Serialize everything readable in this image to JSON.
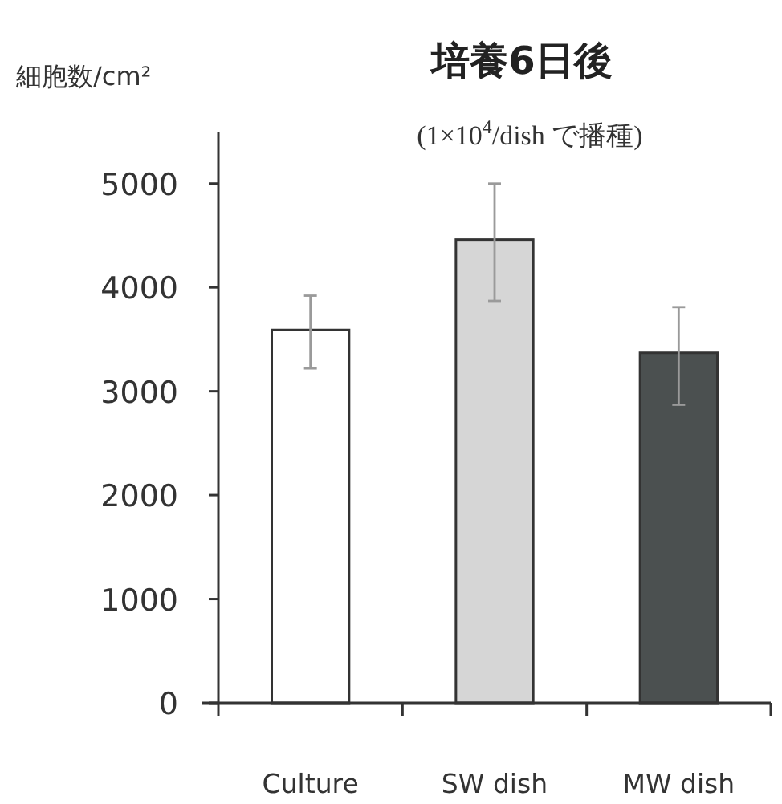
{
  "chart_data": {
    "type": "bar",
    "title": "培養6日後",
    "subtitle": "(1×10$^{4}$/dish で播種)",
    "ylabel": "細胞数/cm²",
    "categories": [
      "Culture",
      "SW dish",
      "MW dish"
    ],
    "values": [
      3590,
      4460,
      3370
    ],
    "colors": [
      "#ffffff",
      "#d6d6d6",
      "#4b5050"
    ],
    "errors": [
      [
        3220,
        3920
      ],
      [
        3870,
        5000
      ],
      [
        2870,
        3810
      ]
    ],
    "ylim": [
      0,
      5500
    ],
    "yticks": [
      0,
      1000,
      2000,
      3000,
      4000,
      5000
    ],
    "grid": false
  }
}
